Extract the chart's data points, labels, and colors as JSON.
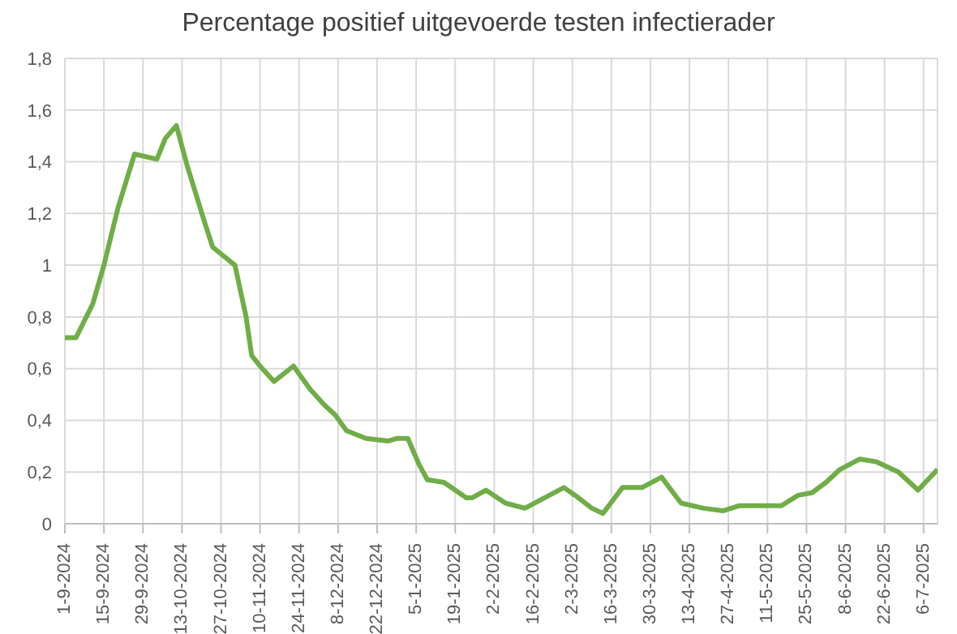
{
  "chart_data": {
    "type": "line",
    "title": "Percentage positief uitgevoerde testen infectierader",
    "x": [
      "2024-09-01",
      "2024-09-05",
      "2024-09-11",
      "2024-09-15",
      "2024-09-20",
      "2024-09-26",
      "2024-10-04",
      "2024-10-07",
      "2024-10-11",
      "2024-10-15",
      "2024-10-21",
      "2024-10-24",
      "2024-11-01",
      "2024-11-05",
      "2024-11-07",
      "2024-11-10",
      "2024-11-15",
      "2024-11-22",
      "2024-11-28",
      "2024-12-03",
      "2024-12-07",
      "2024-12-11",
      "2024-12-18",
      "2024-12-26",
      "2024-12-29",
      "2025-01-02",
      "2025-01-06",
      "2025-01-09",
      "2025-01-15",
      "2025-01-19",
      "2025-01-23",
      "2025-01-25",
      "2025-01-30",
      "2025-02-06",
      "2025-02-13",
      "2025-02-20",
      "2025-02-27",
      "2025-03-03",
      "2025-03-09",
      "2025-03-13",
      "2025-03-20",
      "2025-03-27",
      "2025-04-03",
      "2025-04-10",
      "2025-04-18",
      "2025-04-25",
      "2025-05-01",
      "2025-05-16",
      "2025-05-22",
      "2025-05-27",
      "2025-06-01",
      "2025-06-06",
      "2025-06-13",
      "2025-06-19",
      "2025-06-27",
      "2025-07-04",
      "2025-07-11"
    ],
    "series": [
      {
        "color": "#70ad47",
        "values": [
          0.72,
          0.72,
          0.85,
          1.0,
          1.22,
          1.43,
          1.41,
          1.49,
          1.54,
          1.38,
          1.17,
          1.07,
          1.0,
          0.8,
          0.65,
          0.61,
          0.55,
          0.61,
          0.52,
          0.46,
          0.42,
          0.36,
          0.33,
          0.32,
          0.33,
          0.33,
          0.23,
          0.17,
          0.16,
          0.13,
          0.1,
          0.1,
          0.13,
          0.08,
          0.06,
          0.1,
          0.14,
          0.11,
          0.06,
          0.04,
          0.14,
          0.14,
          0.18,
          0.08,
          0.06,
          0.05,
          0.07,
          0.07,
          0.11,
          0.12,
          0.16,
          0.21,
          0.25,
          0.24,
          0.2,
          0.13,
          0.21
        ]
      }
    ],
    "xlim": [
      "2024-09-01",
      "2025-07-11"
    ],
    "xticks": [
      {
        "value": "2024-09-01",
        "label": "1-9-2024"
      },
      {
        "value": "2024-09-15",
        "label": "15-9-2024"
      },
      {
        "value": "2024-09-29",
        "label": "29-9-2024"
      },
      {
        "value": "2024-10-13",
        "label": "13-10-2024"
      },
      {
        "value": "2024-10-27",
        "label": "27-10-2024"
      },
      {
        "value": "2024-11-10",
        "label": "10-11-2024"
      },
      {
        "value": "2024-11-24",
        "label": "24-11-2024"
      },
      {
        "value": "2024-12-08",
        "label": "8-12-2024"
      },
      {
        "value": "2024-12-22",
        "label": "22-12-2024"
      },
      {
        "value": "2025-01-05",
        "label": "5-1-2025"
      },
      {
        "value": "2025-01-19",
        "label": "19-1-2025"
      },
      {
        "value": "2025-02-02",
        "label": "2-2-2025"
      },
      {
        "value": "2025-02-16",
        "label": "16-2-2025"
      },
      {
        "value": "2025-03-02",
        "label": "2-3-2025"
      },
      {
        "value": "2025-03-16",
        "label": "16-3-2025"
      },
      {
        "value": "2025-03-30",
        "label": "30-3-2025"
      },
      {
        "value": "2025-04-13",
        "label": "13-4-2025"
      },
      {
        "value": "2025-04-27",
        "label": "27-4-2025"
      },
      {
        "value": "2025-05-11",
        "label": "11-5-2025"
      },
      {
        "value": "2025-05-25",
        "label": "25-5-2025"
      },
      {
        "value": "2025-06-08",
        "label": "8-6-2025"
      },
      {
        "value": "2025-06-22",
        "label": "22-6-2025"
      },
      {
        "value": "2025-07-06",
        "label": "6-7-2025"
      }
    ],
    "ylim": [
      0,
      1.8
    ],
    "yticks": [
      0,
      {
        "value": 0.2,
        "label": "0,2"
      },
      {
        "value": 0.4,
        "label": "0,4"
      },
      {
        "value": 0.6,
        "label": "0,6"
      },
      {
        "value": 0.8,
        "label": "0,8"
      },
      1,
      {
        "value": 1.2,
        "label": "1,2"
      },
      {
        "value": 1.4,
        "label": "1,4"
      },
      {
        "value": 1.6,
        "label": "1,6"
      },
      {
        "value": 1.8,
        "label": "1,8"
      }
    ],
    "grid": true,
    "legend": false,
    "marker": "none",
    "line_style": "solid"
  }
}
